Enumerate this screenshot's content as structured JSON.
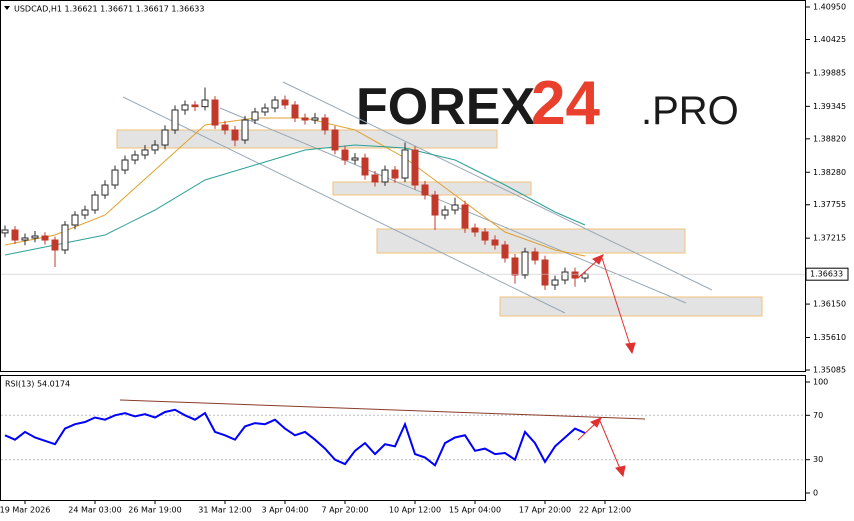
{
  "chart_data": {
    "type": "candlestick",
    "header": "USDCAD,H1 1.36621 1.36671 1.36617 1.36633",
    "watermark": {
      "left": "FOREX",
      "middle": "24",
      "right": ".PRO"
    },
    "up_color": "#2b2b2b",
    "down_color": "#c0392b",
    "candles": {
      "open": [
        1.373,
        1.37347,
        1.37185,
        1.37218,
        1.3725,
        1.37185,
        1.37024,
        1.37428,
        1.37589,
        1.3767,
        1.37912,
        1.38074,
        1.38316,
        1.38478,
        1.38559,
        1.3864,
        1.3872,
        1.38963,
        1.39286,
        1.39367,
        1.3934,
        1.39447,
        1.39043,
        1.38963,
        1.38801,
        1.39124,
        1.39254,
        1.39318,
        1.39447,
        1.39367,
        1.39157,
        1.39124,
        1.39157,
        1.38963,
        1.3864,
        1.38478,
        1.3851,
        1.38236,
        1.38123,
        1.38316,
        1.38187,
        1.3864,
        1.38074,
        1.37912,
        1.37589,
        1.3767,
        1.37751,
        1.37379,
        1.37315,
        1.37185,
        1.37105,
        1.36895,
        1.3662,
        1.36992,
        1.36862,
        1.36458,
        1.36539,
        1.36668,
        1.36571
      ],
      "high": [
        1.3742,
        1.3741,
        1.3729,
        1.3733,
        1.3731,
        1.3724,
        1.3749,
        1.3765,
        1.3774,
        1.3798,
        1.3815,
        1.3839,
        1.3855,
        1.3863,
        1.3872,
        1.388,
        1.3904,
        1.3936,
        1.3944,
        1.3943,
        1.3965,
        1.3951,
        1.3911,
        1.3903,
        1.3919,
        1.3932,
        1.3939,
        1.3951,
        1.3952,
        1.3943,
        1.3923,
        1.3924,
        1.3922,
        1.3903,
        1.3871,
        1.3859,
        1.3858,
        1.383,
        1.3839,
        1.3838,
        1.3876,
        1.387,
        1.3814,
        1.3798,
        1.3774,
        1.3787,
        1.3782,
        1.3745,
        1.3738,
        1.3726,
        1.3717,
        1.3696,
        1.3706,
        1.3706,
        1.3693,
        1.3661,
        1.3674,
        1.3674,
        1.36671
      ],
      "low": [
        1.3723,
        1.3712,
        1.371,
        1.3715,
        1.3711,
        1.3675,
        1.3696,
        1.3736,
        1.3752,
        1.3761,
        1.3785,
        1.3801,
        1.3825,
        1.3841,
        1.3849,
        1.3857,
        1.3865,
        1.389,
        1.3921,
        1.3927,
        1.3928,
        1.3898,
        1.3889,
        1.387,
        1.3874,
        1.3906,
        1.3919,
        1.3925,
        1.393,
        1.3909,
        1.3905,
        1.3906,
        1.3889,
        1.3857,
        1.384,
        1.3841,
        1.3816,
        1.3805,
        1.3806,
        1.3811,
        1.3812,
        1.38,
        1.3784,
        1.3735,
        1.3752,
        1.376,
        1.373,
        1.3724,
        1.3711,
        1.3703,
        1.3682,
        1.3648,
        1.3656,
        1.3679,
        1.3638,
        1.3638,
        1.3647,
        1.3643,
        1.365
      ],
      "close": [
        1.37347,
        1.37185,
        1.37218,
        1.3725,
        1.37185,
        1.37024,
        1.37428,
        1.37589,
        1.3767,
        1.37912,
        1.38074,
        1.38316,
        1.38478,
        1.38559,
        1.3864,
        1.3872,
        1.38963,
        1.39286,
        1.39367,
        1.3934,
        1.39447,
        1.39043,
        1.38963,
        1.38801,
        1.39124,
        1.39254,
        1.39318,
        1.39447,
        1.39367,
        1.39157,
        1.39124,
        1.39157,
        1.38963,
        1.3864,
        1.38478,
        1.3851,
        1.38236,
        1.38123,
        1.38316,
        1.38187,
        1.3864,
        1.38074,
        1.37912,
        1.37589,
        1.3767,
        1.37751,
        1.37379,
        1.37315,
        1.37185,
        1.37105,
        1.36895,
        1.3662,
        1.36992,
        1.36862,
        1.36458,
        1.36539,
        1.36668,
        1.36571,
        1.36633
      ]
    },
    "moving_averages": [
      {
        "color": "#e0a030",
        "x": [
          0,
          5,
          10,
          15,
          20,
          25,
          30,
          35,
          40,
          45,
          50,
          55,
          58
        ],
        "values": [
          1.37105,
          1.37266,
          1.37589,
          1.38316,
          1.39043,
          1.39157,
          1.39157,
          1.38963,
          1.3851,
          1.37912,
          1.37315,
          1.37024,
          1.36927
        ]
      },
      {
        "color": "#2aa198",
        "x": [
          0,
          5,
          10,
          15,
          20,
          25,
          30,
          35,
          40,
          45,
          50,
          55,
          58
        ],
        "values": [
          1.36943,
          1.37105,
          1.37266,
          1.3767,
          1.38155,
          1.38397,
          1.3864,
          1.3872,
          1.38672,
          1.38478,
          1.38074,
          1.37638,
          1.37428
        ]
      }
    ],
    "xlim": [
      -0.5,
      80
    ],
    "xticks": [
      {
        "value": 2,
        "label": "19 Mar 2026"
      },
      {
        "value": 9,
        "label": "24 Mar 03:00"
      },
      {
        "value": 15,
        "label": "26 Mar 19:00"
      },
      {
        "value": 22,
        "label": "31 Mar 12:00"
      },
      {
        "value": 28,
        "label": "3 Apr 04:00"
      },
      {
        "value": 34,
        "label": "7 Apr 20:00"
      },
      {
        "value": 41,
        "label": "10 Apr 12:00"
      },
      {
        "value": 47,
        "label": "15 Apr 04:00"
      },
      {
        "value": 54,
        "label": "17 Apr 20:00"
      },
      {
        "value": 60,
        "label": "22 Apr 12:00"
      }
    ],
    "ylim": [
      1.35085,
      1.4095
    ],
    "yticks": [
      {
        "value": 1.4095,
        "label": "1.40950"
      },
      1.40425,
      1.39885,
      1.39345,
      {
        "value": 1.3882,
        "label": "1.38820"
      },
      {
        "value": 1.3828,
        "label": "1.38280"
      },
      1.37755,
      1.37215,
      {
        "value": 1.3615,
        "label": "1.36150"
      },
      {
        "value": 1.3561,
        "label": "1.35610"
      },
      1.35085
    ],
    "rsi": {
      "title": "RSI(13) 54.0174",
      "color": "#0000ff",
      "values": [
        52,
        48,
        55,
        50,
        47,
        44,
        58,
        62,
        64,
        68,
        66,
        70,
        72,
        69,
        71,
        68,
        73,
        75,
        70,
        66,
        72,
        55,
        52,
        48,
        60,
        63,
        62,
        66,
        58,
        52,
        55,
        48,
        40,
        30,
        26,
        38,
        45,
        35,
        44,
        42,
        62,
        35,
        32,
        25,
        45,
        50,
        52,
        38,
        40,
        35,
        36,
        30,
        55,
        45,
        28,
        42,
        50,
        58,
        54.0174
      ],
      "ylim": [
        0,
        100
      ],
      "yticks": [
        100,
        70,
        30,
        0
      ]
    }
  }
}
